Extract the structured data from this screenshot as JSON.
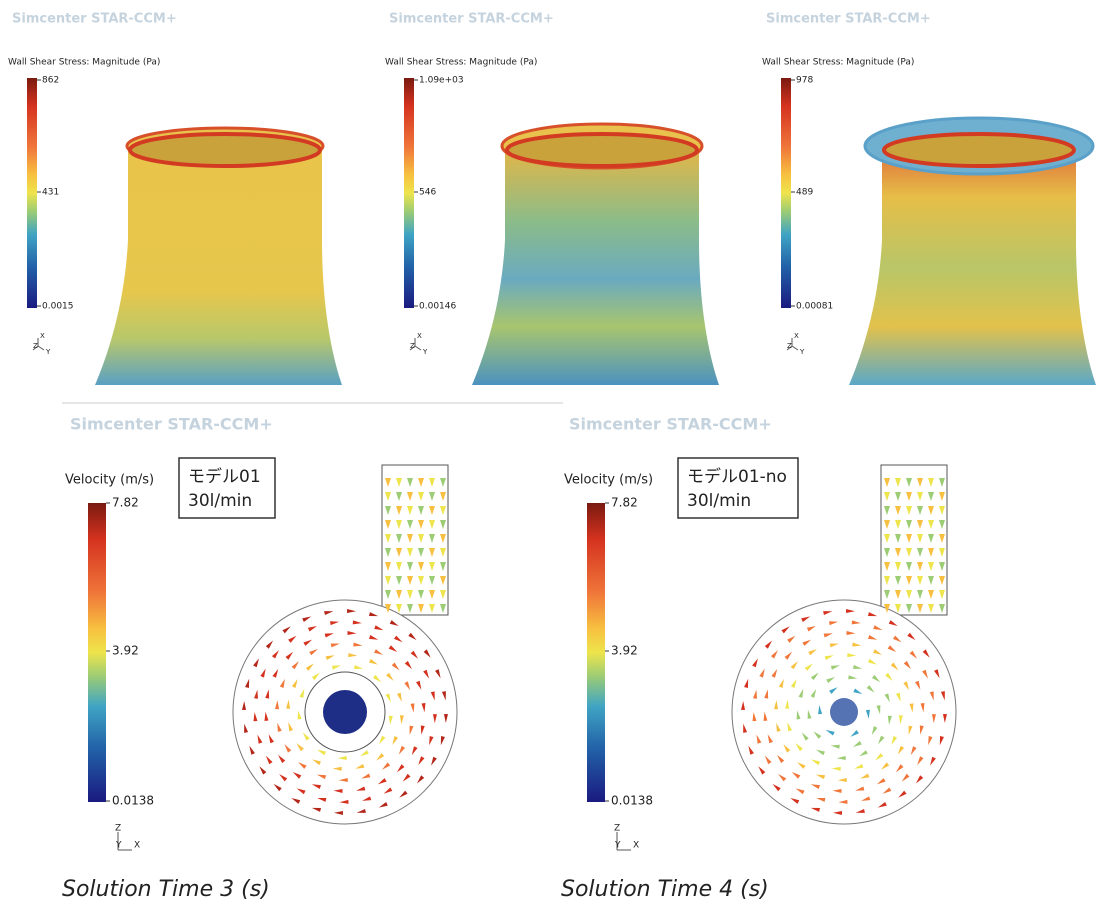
{
  "top_panels": [
    {
      "brand": "Simcenter STAR-CCM+",
      "legend_title": "Wall Shear Stress: Magnitude (Pa)",
      "scale_labels": [
        "862",
        "431",
        "0.0015"
      ],
      "axes": [
        "X",
        "Z",
        "Y"
      ]
    },
    {
      "brand": "Simcenter STAR-CCM+",
      "legend_title": "Wall Shear Stress: Magnitude (Pa)",
      "scale_labels": [
        "1.09e+03",
        "546",
        "0.00146"
      ],
      "axes": [
        "X",
        "Z",
        "Y"
      ]
    },
    {
      "brand": "Simcenter STAR-CCM+",
      "legend_title": "Wall Shear Stress: Magnitude (Pa)",
      "scale_labels": [
        "978",
        "489",
        "0.00081"
      ],
      "axes": [
        "X",
        "Z",
        "Y"
      ]
    }
  ],
  "bottom_panels": [
    {
      "brand": "Simcenter STAR-CCM+",
      "legend_title": "Velocity (m/s)",
      "scale_labels": [
        "7.82",
        "3.92",
        "0.0138"
      ],
      "note": [
        "モデル01",
        "30l/min"
      ],
      "axes": [
        "Z",
        "Y",
        "X"
      ],
      "caption": "Solution Time 3 (s)"
    },
    {
      "brand": "Simcenter STAR-CCM+",
      "legend_title": "Velocity (m/s)",
      "scale_labels": [
        "7.82",
        "3.92",
        "0.0138"
      ],
      "note": [
        "モデル01-no",
        "30l/min"
      ],
      "axes": [
        "Z",
        "Y",
        "X"
      ],
      "caption": "Solution Time 4 (s)"
    }
  ]
}
